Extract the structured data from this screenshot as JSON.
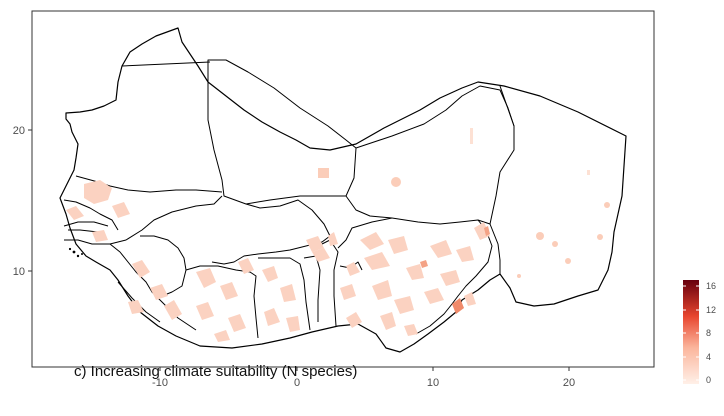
{
  "map": {
    "panel_label": "c) Increasing climate suitability (N species)",
    "x_ticks": [
      "-10",
      "0",
      "10",
      "20"
    ],
    "y_ticks": [
      "20",
      "10"
    ],
    "legend_ticks": [
      "16",
      "12",
      "8",
      "4",
      "0"
    ],
    "legend_range": [
      0,
      17
    ],
    "colors": {
      "low": "#fde0d2",
      "mid": "#f3866d",
      "high": "#67000d",
      "border": "#000000",
      "frame": "#333333"
    }
  }
}
